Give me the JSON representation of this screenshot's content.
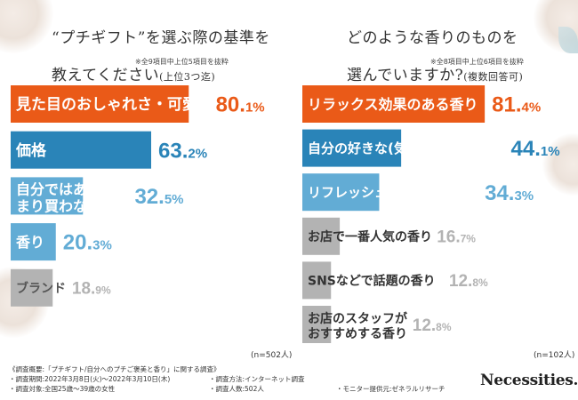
{
  "colors": {
    "orange": "#ea5a18",
    "blue": "#2a84b8",
    "lightblue": "#62acd5",
    "gray": "#b3b3b3",
    "text_dark": "#333333"
  },
  "left_panel": {
    "title_line1": "“プチギフト”を選ぶ際の基準を",
    "title_line2": "教えてください",
    "title_sub": "(上位3つ迄)",
    "note": "※全9項目中上位5項目を抜粋",
    "n_label": "(n=502人)"
  },
  "right_panel": {
    "title_line1": "どのような香りのものを",
    "title_line2": "選んでいますか?",
    "title_sub": "(複数回答可)",
    "note": "※全8項目中上位6項目を抜粋",
    "n_label": "(n=102人)"
  },
  "chart_data": [
    {
      "type": "bar",
      "orientation": "horizontal",
      "title": "“プチギフト”を選ぶ際の基準を教えてください(上位3つ迄)",
      "unit": "%",
      "xlim": [
        0,
        100
      ],
      "categories": [
        "見た目のおしゃれさ・可愛さ",
        "価格",
        "自分ではあまり買わないもの",
        "香り",
        "ブランド"
      ],
      "values": [
        80.1,
        63.2,
        32.5,
        20.3,
        18.9
      ],
      "color_keys": [
        "orange",
        "blue",
        "lightblue",
        "lightblue",
        "gray"
      ]
    },
    {
      "type": "bar",
      "orientation": "horizontal",
      "title": "どのような香りのものを選んでいますか?(複数回答可)",
      "unit": "%",
      "xlim": [
        0,
        100
      ],
      "categories": [
        "リラックス効果のある香り",
        "自分の好きな(気に入った)香り",
        "リフレッシュ効果のある香り",
        "お店で一番人気の香り",
        "SNSなどで話題の香り",
        "お店のスタッフがおすすめする香り"
      ],
      "values": [
        81.4,
        44.1,
        34.3,
        16.7,
        12.8,
        12.8
      ],
      "color_keys": [
        "orange",
        "blue",
        "lightblue",
        "gray",
        "gray",
        "gray"
      ]
    }
  ],
  "footer": {
    "heading": "《調査概要:「プチギフト/自分へのプチご褒美と香り」に関する調査》",
    "period": "・調査期間:2022年3月8日(火)〜2022年3月10日(木)",
    "method": "・調査方法:インターネット調査",
    "target": "・調査対象:全国25歳〜39歳の女性",
    "count": "・調査人数:502人",
    "provider": "・モニター提供元:ゼネラルリサーチ"
  },
  "brand": {
    "name": "Necessities."
  }
}
